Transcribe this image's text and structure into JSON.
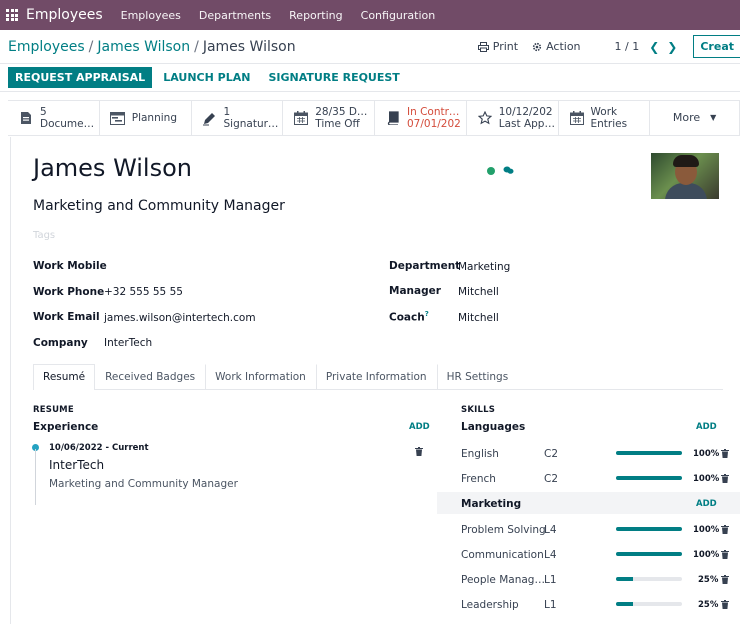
{
  "nav": {
    "app_name": "Employees",
    "menus": [
      "Employees",
      "Departments",
      "Reporting",
      "Configuration"
    ]
  },
  "control": {
    "breadcrumb": [
      "Employees",
      "James Wilson",
      "James Wilson"
    ],
    "print_label": "Print",
    "action_label": "Action",
    "pager": "1 / 1",
    "create_label": "Creat"
  },
  "statusbar": {
    "buttons": [
      "REQUEST APPRAISAL",
      "LAUNCH PLAN",
      "SIGNATURE REQUEST"
    ]
  },
  "smart_buttons": [
    {
      "line1": "5",
      "line2": "Docume…",
      "icon": "file-icon"
    },
    {
      "line1": "Planning",
      "line2": "",
      "icon": "planning-icon"
    },
    {
      "line1": "1",
      "line2": "Signatur…",
      "icon": "signature-icon"
    },
    {
      "line1": "28/35 D…",
      "line2": "Time Off",
      "icon": "calendar-icon"
    },
    {
      "line1": "In Contr…",
      "line2": "07/01/202",
      "icon": "book-icon"
    },
    {
      "line1": "10/12/202",
      "line2": "Last App…",
      "icon": "star-icon"
    },
    {
      "line1": "Work",
      "line2": "Entries",
      "icon": "calendar-icon"
    },
    {
      "line1": "More",
      "line2": "",
      "icon": "caret-down-icon"
    }
  ],
  "employee": {
    "name": "James Wilson",
    "job_title": "Marketing and Community Manager",
    "tags_placeholder": "Tags",
    "presence_color": "#22a06b"
  },
  "fields_left": [
    {
      "label": "Work Mobile",
      "value": ""
    },
    {
      "label": "Work Phone",
      "value": "+32 555 55 55"
    },
    {
      "label": "Work Email",
      "value": "james.wilson@intertech.com"
    },
    {
      "label": "Company",
      "value": "InterTech"
    }
  ],
  "fields_right": [
    {
      "label": "Department",
      "value": "Marketing"
    },
    {
      "label": "Manager",
      "value": "Mitchell"
    },
    {
      "label": "Coach",
      "sup": "?",
      "value": "Mitchell"
    }
  ],
  "tabs": [
    "Resumé",
    "Received Badges",
    "Work Information",
    "Private Information",
    "HR Settings"
  ],
  "resume": {
    "title": "RESUME",
    "experience_label": "Experience",
    "add_label": "ADD",
    "entry": {
      "dates": "10/06/2022 - Current",
      "company": "InterTech",
      "role": "Marketing and Community Manager"
    }
  },
  "skills": {
    "title": "SKILLS",
    "groups": [
      {
        "name": "Languages",
        "add_label": "ADD",
        "items": [
          {
            "name": "English",
            "level": "C2",
            "pct": 100,
            "pct_label": "100%"
          },
          {
            "name": "French",
            "level": "C2",
            "pct": 100,
            "pct_label": "100%"
          }
        ]
      },
      {
        "name": "Marketing",
        "add_label": "ADD",
        "items": [
          {
            "name": "Problem Solving",
            "level": "L4",
            "pct": 100,
            "pct_label": "100%"
          },
          {
            "name": "Communication",
            "level": "L4",
            "pct": 100,
            "pct_label": "100%"
          },
          {
            "name": "People Manag…",
            "level": "L1",
            "pct": 25,
            "pct_label": "25%"
          },
          {
            "name": "Leadership",
            "level": "L1",
            "pct": 25,
            "pct_label": "25%"
          }
        ]
      }
    ]
  }
}
